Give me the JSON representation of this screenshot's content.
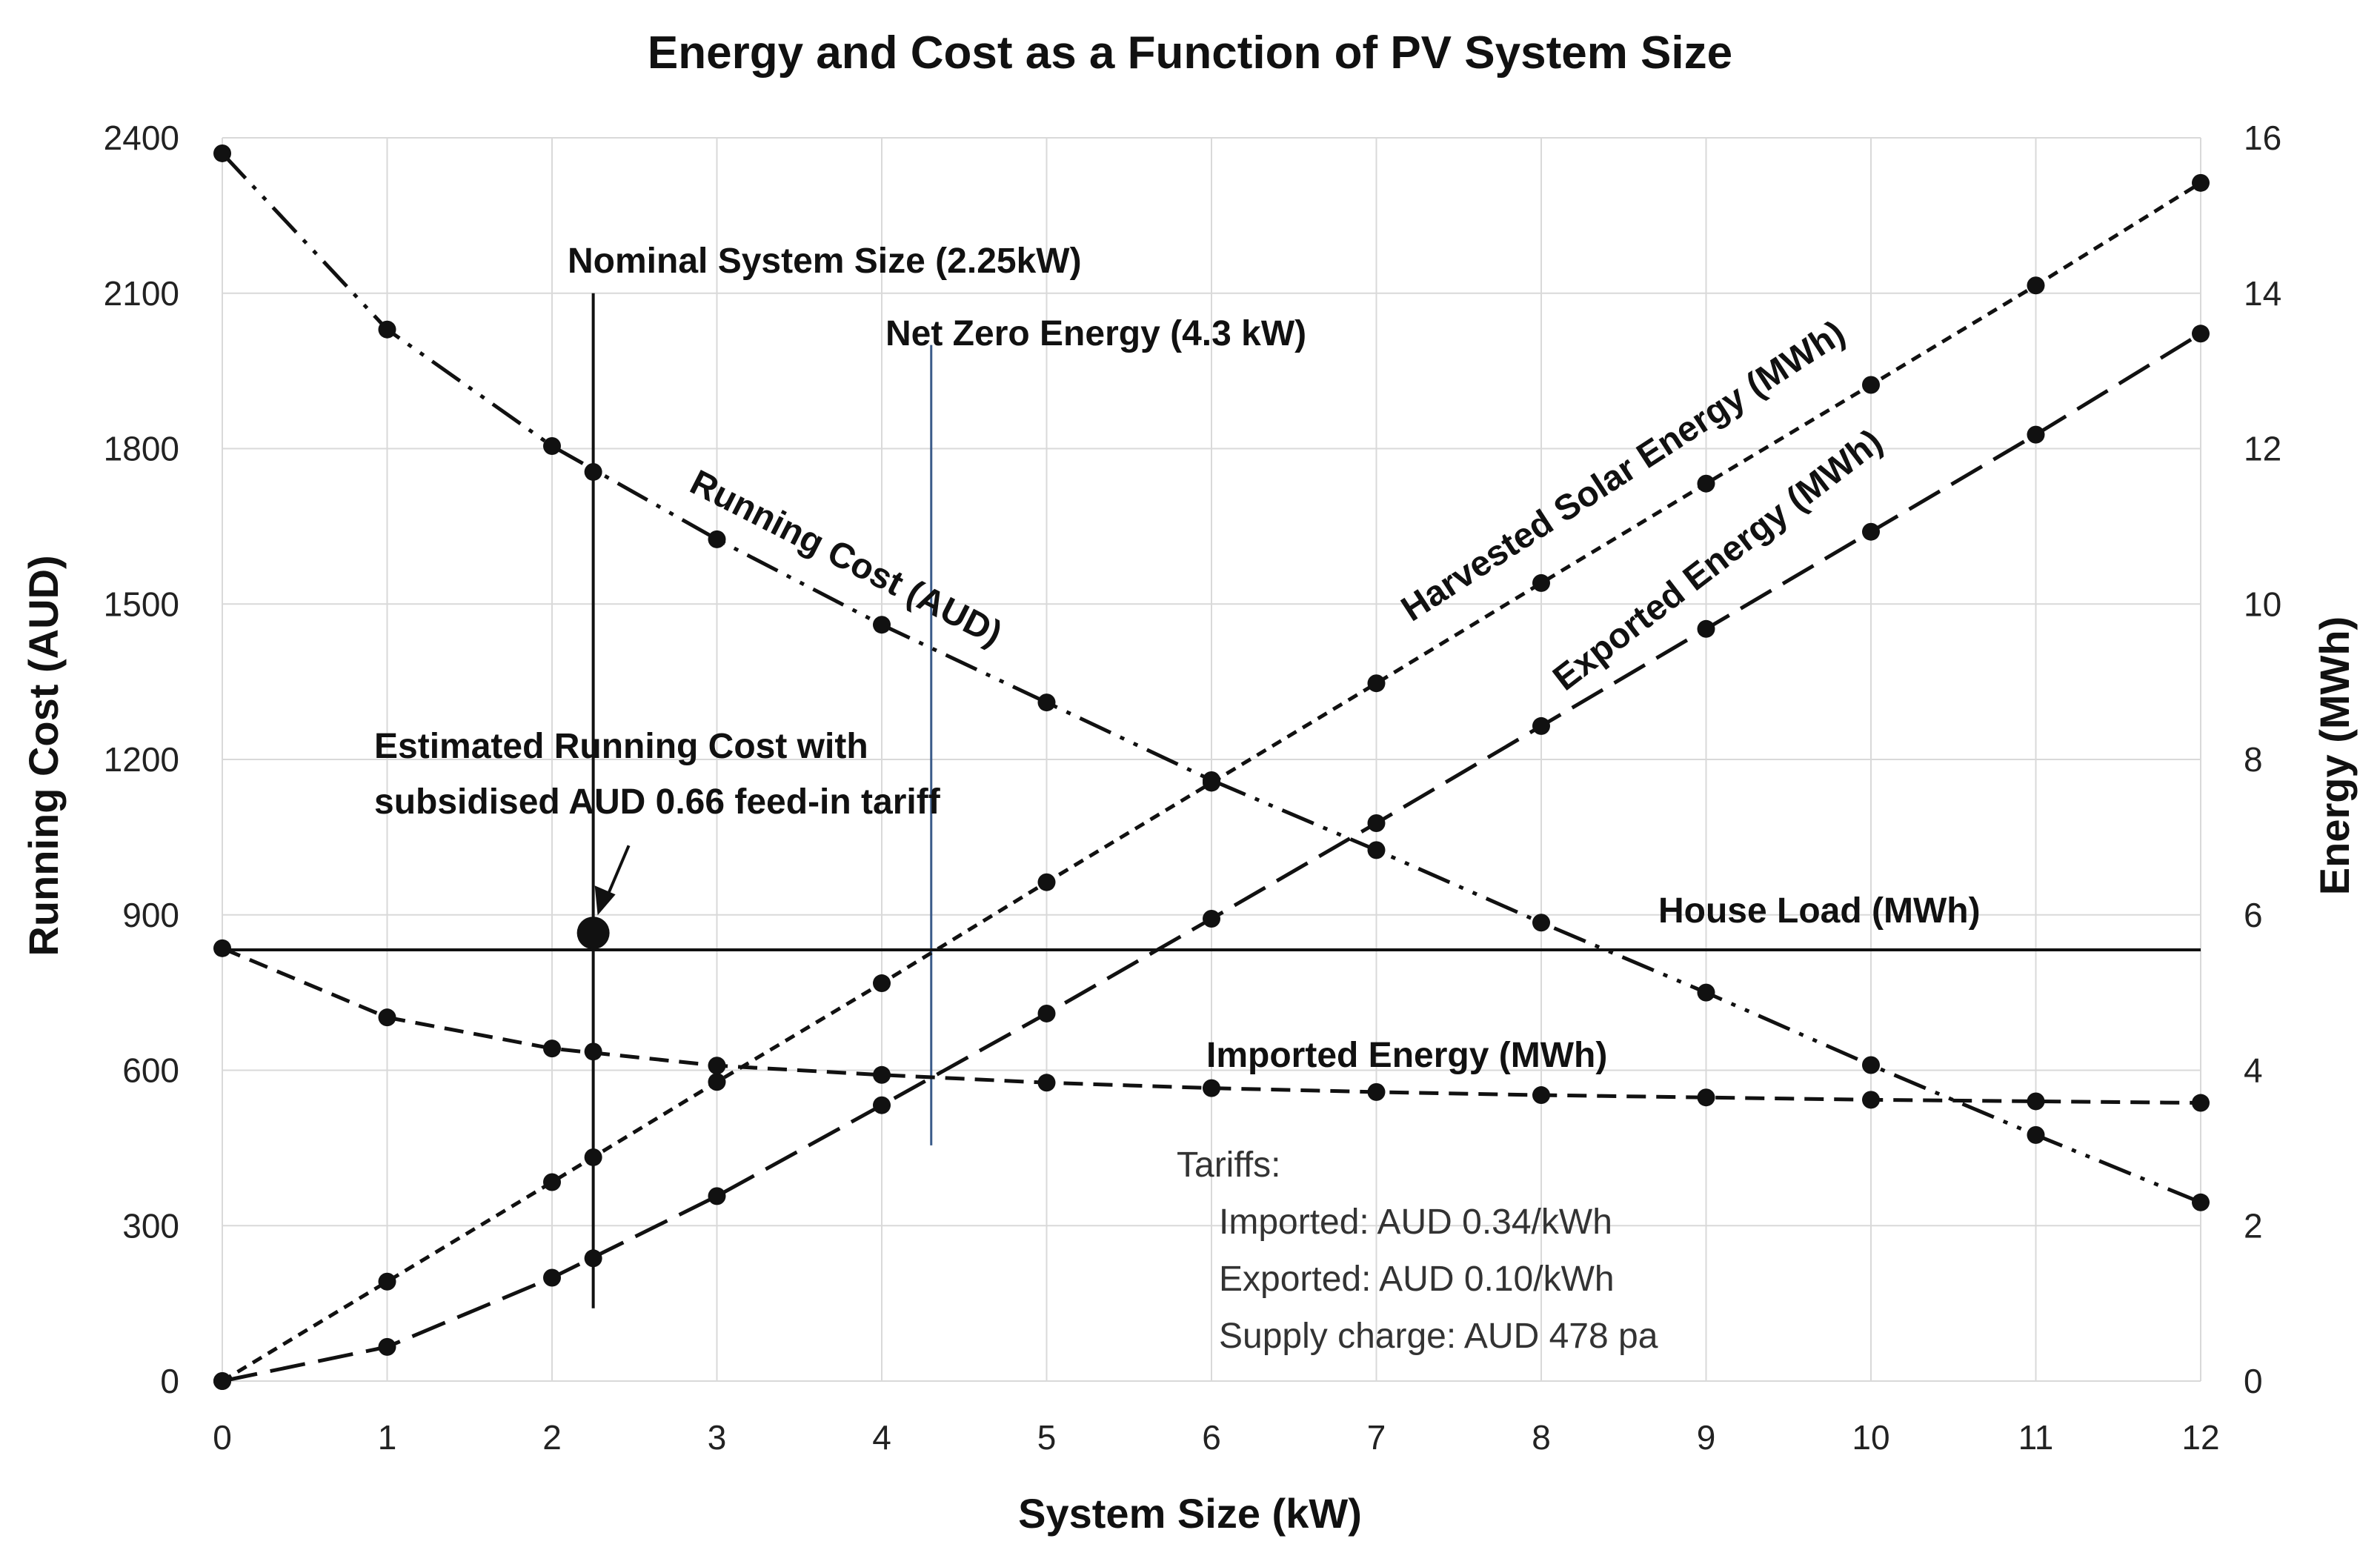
{
  "chart_data": {
    "type": "line",
    "title": "Energy and Cost as a Function of PV System Size",
    "xlabel": "System Size (kW)",
    "ylabel": "Running Cost (AUD)",
    "y2label": "Energy (MWh)",
    "xlim": [
      0,
      12
    ],
    "ylim": [
      0,
      2400
    ],
    "y2lim": [
      0,
      16
    ],
    "x": [
      0,
      1,
      2,
      3,
      4,
      5,
      6,
      7,
      8,
      9,
      10,
      11,
      12
    ],
    "x_ticks": [
      "0",
      "1",
      "2",
      "3",
      "4",
      "5",
      "6",
      "7",
      "8",
      "9",
      "10",
      "11",
      "12"
    ],
    "y_ticks": [
      "0",
      "300",
      "600",
      "900",
      "1200",
      "1500",
      "1800",
      "2100",
      "2400"
    ],
    "y2_ticks": [
      "0",
      "2",
      "4",
      "6",
      "8",
      "10",
      "12",
      "14",
      "16"
    ],
    "grid": true,
    "series": [
      {
        "name": "Running Cost (AUD)",
        "axis": "left",
        "style": "dash-dot-dot",
        "values": [
          2370,
          2030,
          1805,
          1625,
          1460,
          1310,
          1160,
          1025,
          885,
          750,
          610,
          475,
          345
        ]
      },
      {
        "name": "Harvested Solar Energy (MWh)",
        "axis": "right",
        "style": "short-dash",
        "values": [
          0,
          1.28,
          2.56,
          3.85,
          5.12,
          6.42,
          7.7,
          8.98,
          10.27,
          11.55,
          12.82,
          14.1,
          15.42
        ]
      },
      {
        "name": "Exported Energy (MWh)",
        "axis": "right",
        "style": "long-dash",
        "values": [
          0,
          0.44,
          1.33,
          2.38,
          3.55,
          4.73,
          5.95,
          7.18,
          8.43,
          9.68,
          10.93,
          12.18,
          13.48
        ]
      },
      {
        "name": "Imported Energy (MWh)",
        "axis": "right",
        "style": "medium-dash",
        "values": [
          5.57,
          4.68,
          4.28,
          4.06,
          3.94,
          3.84,
          3.77,
          3.72,
          3.68,
          3.65,
          3.62,
          3.6,
          3.58
        ]
      },
      {
        "name": "House Load (MWh)",
        "axis": "right",
        "style": "solid",
        "values": [
          5.55,
          5.55,
          5.55,
          5.55,
          5.55,
          5.55,
          5.55,
          5.55,
          5.55,
          5.55,
          5.55,
          5.55,
          5.55
        ]
      }
    ],
    "nominal": {
      "x": 2.25,
      "label": "Nominal System Size (2.25kW)",
      "markers": {
        "running_cost": 1755,
        "harvested": 2.88,
        "exported": 1.58,
        "imported": 4.24
      }
    },
    "net_zero": {
      "x": 4.3,
      "label": "Net Zero Energy (4.3 kW)"
    },
    "estimate": {
      "x": 2.25,
      "value": 865,
      "label_line1": "Estimated Running Cost with",
      "label_line2": "subsidised AUD 0.66 feed-in tariff"
    },
    "series_labels": {
      "running_cost": "Running Cost (AUD)",
      "harvested": "Harvested Solar Energy (MWh)",
      "exported": "Exported Energy (MWh)",
      "imported": "Imported Energy (MWh)",
      "house_load": "House Load (MWh)"
    },
    "tariffs": {
      "heading": "Tariffs:",
      "imported": "Imported: AUD 0.34/kWh",
      "exported": "Exported: AUD 0.10/kWh",
      "supply": "Supply charge: AUD 478 pa"
    },
    "colors": {
      "lines": "#111111",
      "net_zero_line": "#3b5b8a",
      "grid": "#d9d9d9"
    }
  }
}
